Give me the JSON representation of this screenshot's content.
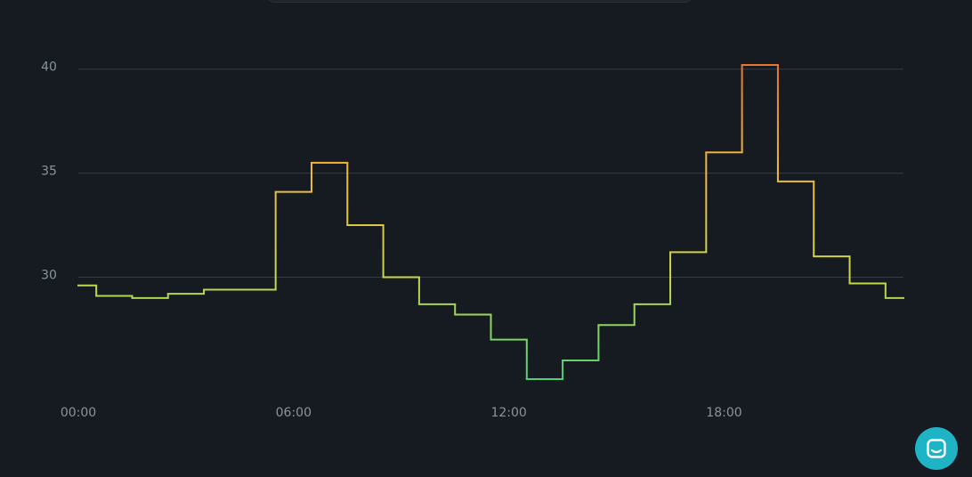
{
  "chart_data": {
    "type": "step",
    "x": [
      0,
      1,
      2,
      3,
      4,
      5,
      6,
      7,
      8,
      9,
      10,
      11,
      12,
      13,
      14,
      15,
      16,
      17,
      18,
      19,
      20,
      21,
      22,
      23
    ],
    "values": [
      29.6,
      29.1,
      29.0,
      29.2,
      29.4,
      29.4,
      34.1,
      35.5,
      32.5,
      30.0,
      28.7,
      28.2,
      27.0,
      25.1,
      26.0,
      27.7,
      28.7,
      31.2,
      36.0,
      40.2,
      34.6,
      31.0,
      29.7,
      29.0
    ],
    "xlim": [
      0,
      23
    ],
    "xticks": [
      {
        "value": 0,
        "label": "00:00"
      },
      {
        "value": 6,
        "label": "06:00"
      },
      {
        "value": 12,
        "label": "12:00"
      },
      {
        "value": 18,
        "label": "18:00"
      }
    ],
    "ylim": [
      24.5,
      40.8
    ],
    "yticks": [
      30,
      35,
      40
    ],
    "grid": true,
    "colors": [
      "#3fd07c",
      "#c6d84a",
      "#f4b63d",
      "#e66f2a"
    ]
  }
}
